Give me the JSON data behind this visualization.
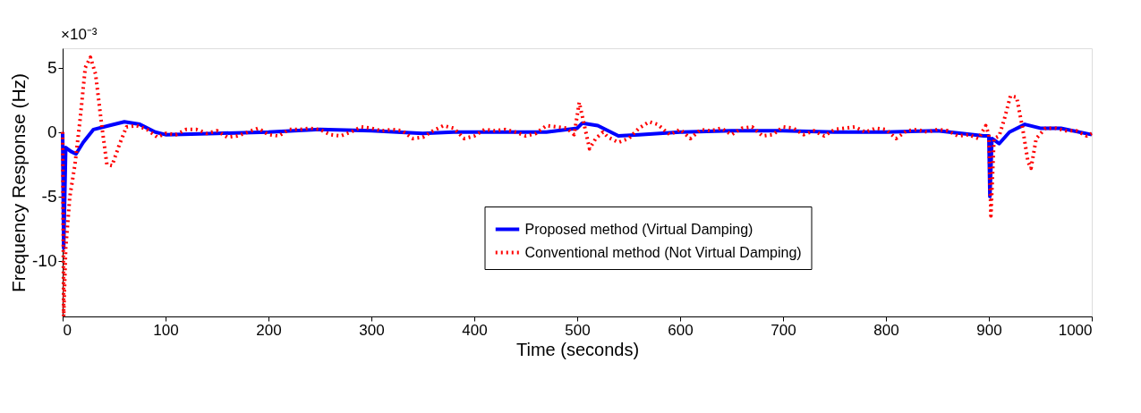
{
  "chart_data": {
    "type": "line",
    "xlabel": "Time (seconds)",
    "ylabel": "Frequency Response (Hz)",
    "annotations": [
      "×10⁻³"
    ],
    "xlim": [
      0,
      1000
    ],
    "xticks": [
      0,
      100,
      200,
      300,
      400,
      500,
      600,
      700,
      800,
      900,
      1000
    ],
    "ylim": [
      -14.3,
      6.5
    ],
    "yticks": [
      -10,
      -5,
      0,
      5
    ],
    "grid": false,
    "legend": "bottom",
    "marker": "none",
    "series": [
      {
        "name": "Proposed method (Virtual Damping)",
        "color": "#0000ff",
        "line_style": "solid",
        "x": [
          0,
          1,
          3,
          8,
          13,
          20,
          30,
          45,
          60,
          75,
          90,
          100,
          150,
          200,
          250,
          300,
          350,
          380,
          420,
          470,
          500,
          505,
          520,
          540,
          560,
          600,
          650,
          700,
          750,
          800,
          850,
          895,
          900,
          901,
          903,
          910,
          920,
          935,
          950,
          970,
          1000
        ],
        "values": [
          0,
          -9,
          -1.2,
          -1.5,
          -1.7,
          -0.8,
          0.2,
          0.5,
          0.8,
          0.6,
          0,
          -0.2,
          -0.1,
          0,
          0.2,
          0.1,
          -0.1,
          0,
          0,
          0,
          0.3,
          0.7,
          0.5,
          -0.3,
          -0.2,
          0,
          0.1,
          0.1,
          0,
          0,
          0.1,
          -0.3,
          -0.3,
          -5,
          -0.5,
          -0.9,
          0,
          0.6,
          0.3,
          0.3,
          -0.2
        ]
      },
      {
        "name": "Conventional method (Not Virtual Damping)",
        "color": "#ff0000",
        "line_style": "dotted",
        "x": [
          0,
          1,
          3,
          7,
          12,
          17,
          22,
          27,
          32,
          38,
          43,
          48,
          55,
          62,
          72,
          82,
          92,
          100,
          110,
          120,
          130,
          140,
          150,
          160,
          170,
          180,
          190,
          200,
          210,
          220,
          230,
          240,
          250,
          260,
          270,
          280,
          290,
          300,
          310,
          320,
          330,
          340,
          350,
          360,
          370,
          380,
          390,
          400,
          410,
          420,
          430,
          440,
          450,
          460,
          470,
          480,
          490,
          497,
          502,
          507,
          512,
          518,
          525,
          530,
          540,
          550,
          560,
          570,
          578,
          590,
          600,
          610,
          620,
          630,
          640,
          650,
          660,
          670,
          680,
          690,
          700,
          710,
          720,
          730,
          740,
          750,
          760,
          770,
          780,
          790,
          800,
          810,
          820,
          830,
          840,
          850,
          860,
          870,
          880,
          890,
          897,
          900,
          902,
          905,
          910,
          915,
          921,
          927,
          933,
          938,
          941,
          946,
          955,
          965,
          975,
          985,
          995,
          1000
        ],
        "values": [
          0,
          -14.3,
          -9,
          -5,
          -2.5,
          1,
          5,
          5.8,
          4.5,
          0.5,
          -2.5,
          -2.6,
          -1,
          0.4,
          0.5,
          0.2,
          -0.4,
          -0.1,
          -0.2,
          0.2,
          0.2,
          -0.1,
          0.1,
          -0.4,
          -0.3,
          0,
          0.3,
          -0.2,
          -0.3,
          0.2,
          0.2,
          0.3,
          0.2,
          -0.2,
          -0.3,
          0,
          0.4,
          0.3,
          0.1,
          0.2,
          0.1,
          -0.5,
          -0.4,
          0.1,
          0.5,
          0.3,
          -0.5,
          -0.3,
          0.2,
          0.1,
          0.2,
          0,
          -0.3,
          -0.1,
          0.5,
          0.4,
          0.3,
          -0.2,
          2.3,
          0.5,
          -1.3,
          -0.5,
          0,
          -0.4,
          -0.8,
          -0.5,
          0.3,
          0.8,
          0.6,
          -0.2,
          0.2,
          -0.5,
          0.2,
          0.1,
          0.3,
          -0.2,
          0.3,
          0.4,
          -0.3,
          -0.2,
          0.4,
          0.3,
          -0.2,
          0.1,
          -0.3,
          0.2,
          0.3,
          0.4,
          0,
          0.3,
          0.2,
          -0.5,
          0.1,
          0.2,
          0,
          0.2,
          0.1,
          -0.3,
          -0.2,
          -0.5,
          0.5,
          -0.2,
          -6.5,
          -0.5,
          -0.3,
          1,
          2.8,
          2.7,
          0.2,
          -2.3,
          -2.8,
          -0.5,
          0.3,
          0.3,
          0.1,
          0.1,
          -0.3,
          -0.1
        ]
      }
    ]
  }
}
